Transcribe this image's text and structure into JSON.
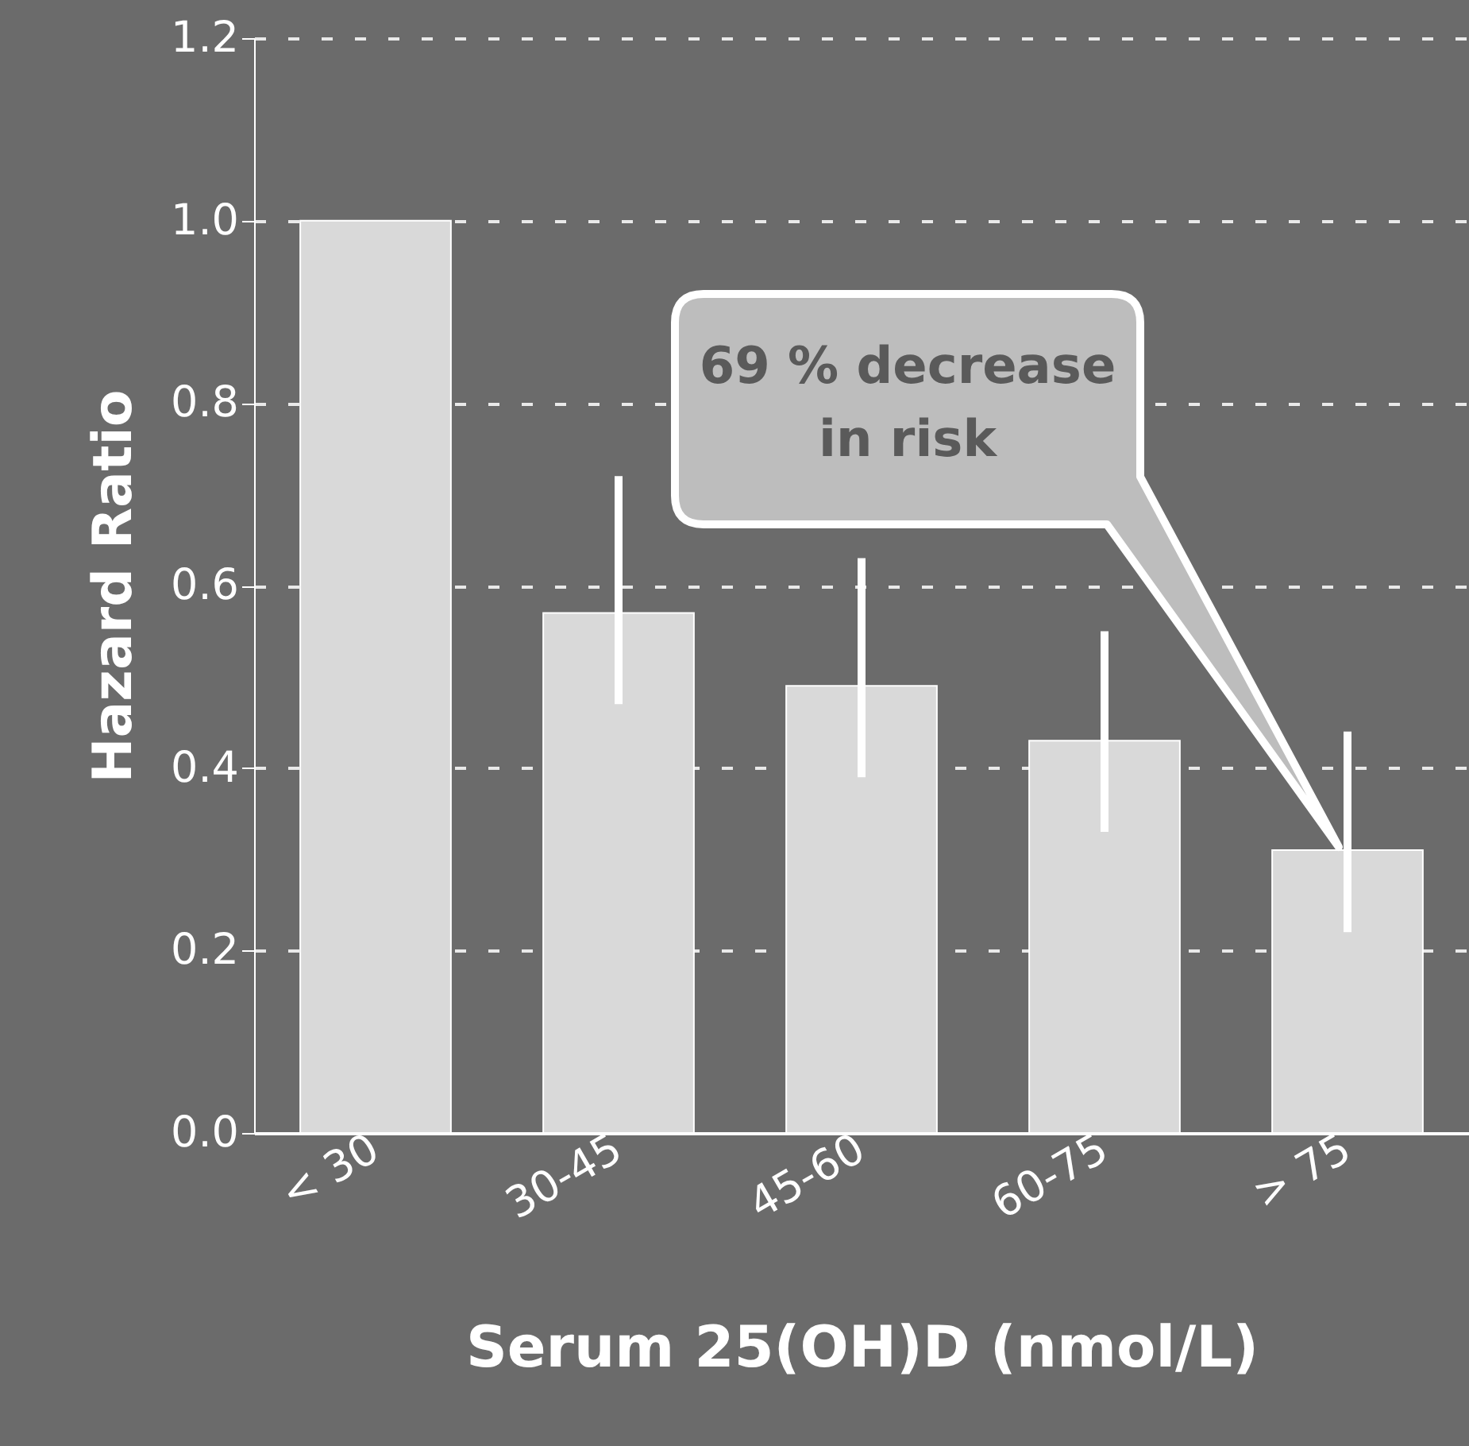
{
  "chart_data": {
    "type": "bar",
    "xlabel": "Serum 25(OH)D (nmol/L)",
    "ylabel": "Hazard Ratio",
    "categories": [
      "< 30",
      "30-45",
      "45-60",
      "60-75",
      "> 75"
    ],
    "values": [
      1.0,
      0.57,
      0.49,
      0.43,
      0.31
    ],
    "errors": [
      null,
      [
        0.47,
        0.72
      ],
      [
        0.39,
        0.63
      ],
      [
        0.33,
        0.55
      ],
      [
        0.22,
        0.44
      ]
    ],
    "color": "#d9d9d9",
    "ylim": [
      0,
      1.2
    ],
    "yticks": [
      {
        "value": 0,
        "label": "0.0"
      },
      0.2,
      0.4,
      0.6,
      0.8,
      {
        "value": 1,
        "label": "1.0"
      },
      1.2
    ],
    "grid": "y",
    "annotations": [
      "69 % decrease\nin risk"
    ]
  }
}
